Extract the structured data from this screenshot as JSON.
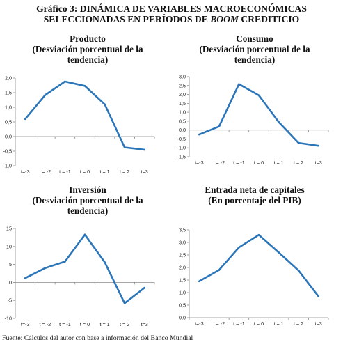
{
  "figure": {
    "title_prefix": "Gráfico 3: DINÁMICA DE VARIABLES MACROECONÓMICAS",
    "title_line2_a": "SELECCIONADAS EN PERÍODOS DE ",
    "title_line2_italic": "BOOM",
    "title_line2_b": " CREDITICIO",
    "source": "Fuente:  Cálculos del autor con base a información del Banco Mundial"
  },
  "panels": [
    {
      "title_lines": [
        "Producto",
        "(Desviación porcentual de la",
        "tendencia)"
      ]
    },
    {
      "title_lines": [
        "Consumo",
        "(Desviación porcentual de la",
        "tendencia)"
      ]
    },
    {
      "title_lines": [
        "Inversión",
        "(Desviación porcentual de la",
        "tendencia)"
      ]
    },
    {
      "title_lines": [
        "Entrada neta de capitales",
        "(En porcentaje del PIB)"
      ]
    }
  ],
  "chart_data": [
    {
      "type": "line",
      "title": "Producto (Desviación porcentual de la tendencia)",
      "categories": [
        "t=-3",
        "t = -2",
        "t = -1",
        "t = 0",
        "t = 1",
        "t = 2",
        "t=3"
      ],
      "values": [
        0.6,
        1.42,
        1.88,
        1.73,
        1.1,
        -0.37,
        -0.45
      ],
      "ylim": [
        -1.0,
        2.0
      ],
      "yticks": [
        "-1,0",
        "-0,5",
        "0,0",
        "0,5",
        "1,0",
        "1,5",
        "2,0"
      ],
      "ytick_values": [
        -1.0,
        -0.5,
        0.0,
        0.5,
        1.0,
        1.5,
        2.0
      ],
      "grid": false,
      "color": "#2b75b9"
    },
    {
      "type": "line",
      "title": "Consumo (Desviación porcentual de la tendencia)",
      "categories": [
        "t=-3",
        "t = -2",
        "t = -1",
        "t = 0",
        "t = 1",
        "t = 2",
        "t=3"
      ],
      "values": [
        -0.25,
        0.2,
        2.58,
        1.95,
        0.45,
        -0.72,
        -0.88
      ],
      "ylim": [
        -1.5,
        3.0
      ],
      "yticks": [
        "-1,5",
        "-1,0",
        "-0,5",
        "0,0",
        "0,5",
        "1,0",
        "1,5",
        "2,0",
        "2,5",
        "3,0"
      ],
      "ytick_values": [
        -1.5,
        -1.0,
        -0.5,
        0.0,
        0.5,
        1.0,
        1.5,
        2.0,
        2.5,
        3.0
      ],
      "grid": false,
      "color": "#2b75b9"
    },
    {
      "type": "line",
      "title": "Inversión (Desviación porcentual de la tendencia)",
      "categories": [
        "t=-3",
        "t = -2",
        "t = -1",
        "t = 0",
        "t = 1",
        "t = 2",
        "t=3"
      ],
      "values": [
        1.2,
        4.0,
        5.8,
        13.3,
        5.6,
        -5.8,
        -1.5
      ],
      "ylim": [
        -10,
        15
      ],
      "yticks": [
        "-10",
        "-5",
        "0",
        "5",
        "10",
        "15"
      ],
      "ytick_values": [
        -10,
        -5,
        0,
        5,
        10,
        15
      ],
      "grid": false,
      "color": "#2b75b9"
    },
    {
      "type": "line",
      "title": "Entrada neta de capitales (En porcentaje del PIB)",
      "categories": [
        "t=-3",
        "t = -2",
        "t = -1",
        "t = 0",
        "t = 1",
        "t = 2",
        "t=3"
      ],
      "values": [
        1.45,
        1.9,
        2.8,
        3.3,
        2.6,
        1.88,
        0.85
      ],
      "ylim": [
        0.0,
        3.5
      ],
      "yticks": [
        "0,0",
        "0,5",
        "1,0",
        "1,5",
        "2,0",
        "2,5",
        "3,0",
        "3,5"
      ],
      "ytick_values": [
        0.0,
        0.5,
        1.0,
        1.5,
        2.0,
        2.5,
        3.0,
        3.5
      ],
      "grid": false,
      "color": "#2b75b9"
    }
  ]
}
